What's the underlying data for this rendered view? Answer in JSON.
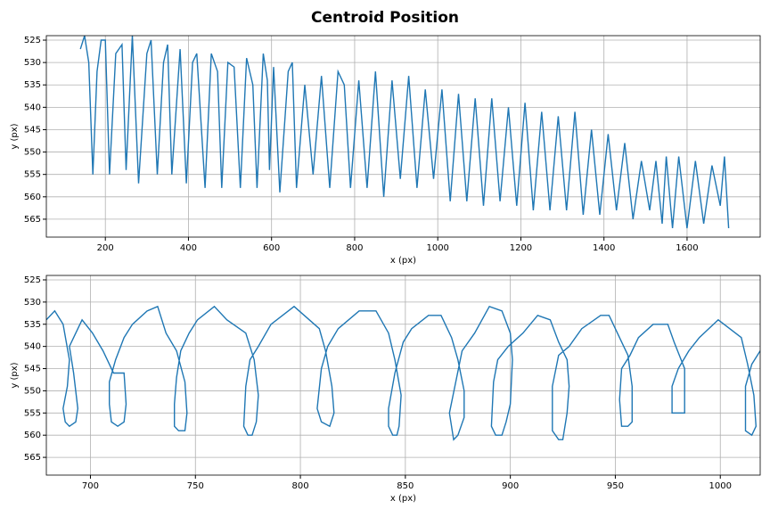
{
  "title": "Centroid Position",
  "chart_data": [
    {
      "type": "line",
      "xlabel": "x (px)",
      "ylabel": "y (px)",
      "color": "#1f77b4",
      "grid": true,
      "xlim": [
        58,
        1776
      ],
      "ylim": [
        569,
        524
      ],
      "xticks": [
        200,
        400,
        600,
        800,
        1000,
        1200,
        1400,
        1600
      ],
      "yticks": [
        525,
        530,
        535,
        540,
        545,
        550,
        555,
        560,
        565
      ],
      "x": [
        140,
        150,
        160,
        170,
        180,
        190,
        200,
        210,
        225,
        240,
        250,
        265,
        280,
        300,
        310,
        325,
        340,
        350,
        360,
        380,
        395,
        410,
        420,
        440,
        455,
        470,
        480,
        495,
        510,
        525,
        540,
        555,
        565,
        580,
        590,
        595,
        605,
        620,
        640,
        650,
        660,
        680,
        700,
        720,
        740,
        760,
        775,
        790,
        810,
        830,
        850,
        870,
        890,
        910,
        930,
        950,
        970,
        990,
        1010,
        1030,
        1050,
        1070,
        1090,
        1110,
        1130,
        1150,
        1170,
        1190,
        1210,
        1230,
        1250,
        1270,
        1290,
        1310,
        1330,
        1350,
        1370,
        1390,
        1410,
        1430,
        1450,
        1470,
        1490,
        1510,
        1525,
        1540,
        1550,
        1565,
        1580,
        1600,
        1620,
        1640,
        1660,
        1680,
        1690,
        1700
      ],
      "values": [
        527,
        524,
        530,
        555,
        532,
        525,
        525,
        555,
        528,
        526,
        554,
        524,
        557,
        528,
        525,
        555,
        530,
        526,
        555,
        527,
        557,
        530,
        528,
        558,
        528,
        532,
        558,
        530,
        531,
        558,
        529,
        535,
        558,
        528,
        534,
        554,
        531,
        559,
        532,
        530,
        558,
        535,
        555,
        533,
        558,
        532,
        535,
        558,
        534,
        558,
        532,
        560,
        534,
        556,
        533,
        558,
        536,
        556,
        536,
        561,
        537,
        561,
        538,
        562,
        538,
        561,
        540,
        562,
        539,
        563,
        541,
        563,
        542,
        563,
        541,
        564,
        545,
        564,
        546,
        563,
        548,
        565,
        552,
        563,
        552,
        566,
        551,
        567,
        551,
        567,
        552,
        566,
        553,
        562,
        551,
        567
      ]
    },
    {
      "type": "line",
      "xlabel": "x (px)",
      "ylabel": "y (px)",
      "color": "#1f77b4",
      "grid": true,
      "xlim": [
        679,
        1019
      ],
      "ylim": [
        569,
        524
      ],
      "xticks": [
        700,
        750,
        800,
        850,
        900,
        950,
        1000
      ],
      "yticks": [
        525,
        530,
        535,
        540,
        545,
        550,
        555,
        560,
        565
      ],
      "x": [
        679,
        683,
        687,
        690,
        689,
        687,
        688,
        690,
        693,
        694,
        692,
        690,
        693,
        696,
        701,
        706,
        711,
        716,
        717,
        716,
        713,
        710,
        709,
        709,
        712,
        716,
        720,
        727,
        732,
        736,
        741,
        745,
        746,
        745,
        742,
        740,
        740,
        741,
        743,
        747,
        751,
        759,
        765,
        774,
        778,
        780,
        779,
        777,
        775,
        773,
        774,
        776,
        780,
        786,
        797,
        809,
        812,
        815,
        816,
        814,
        810,
        808,
        810,
        813,
        818,
        828,
        836,
        842,
        845,
        848,
        847,
        846,
        844,
        842,
        842,
        845,
        849,
        853,
        861,
        867,
        872,
        875,
        878,
        878,
        875,
        873,
        871,
        874,
        877,
        883,
        890,
        896,
        900,
        901,
        900,
        898,
        896,
        893,
        891,
        892,
        894,
        899,
        906,
        913,
        919,
        923,
        927,
        928,
        927,
        925,
        923,
        920,
        920,
        923,
        928,
        934,
        943,
        947,
        951,
        956,
        958,
        958,
        956,
        953,
        952,
        953,
        957,
        961,
        968,
        975,
        978,
        983,
        983,
        977,
        977,
        980,
        985,
        990,
        999,
        1010,
        1013,
        1016,
        1017,
        1015,
        1012,
        1012,
        1015,
        1019
      ],
      "values": [
        534,
        532,
        535,
        543,
        549,
        554,
        557,
        558,
        557,
        554,
        546,
        540,
        537,
        534,
        537,
        541,
        546,
        546,
        553,
        557,
        558,
        557,
        553,
        548,
        543,
        538,
        535,
        532,
        531,
        537,
        541,
        548,
        555,
        559,
        559,
        558,
        553,
        547,
        541,
        537,
        534,
        531,
        534,
        537,
        543,
        551,
        557,
        560,
        560,
        558,
        549,
        543,
        540,
        535,
        531,
        536,
        541,
        549,
        555,
        558,
        557,
        554,
        545,
        540,
        536,
        532,
        532,
        537,
        543,
        551,
        558,
        560,
        560,
        558,
        554,
        546,
        539,
        536,
        533,
        533,
        538,
        543,
        550,
        556,
        560,
        561,
        555,
        548,
        541,
        537,
        531,
        532,
        537,
        543,
        553,
        557,
        560,
        560,
        558,
        548,
        543,
        540,
        537,
        533,
        534,
        539,
        543,
        549,
        555,
        561,
        561,
        559,
        549,
        542,
        540,
        536,
        533,
        533,
        537,
        542,
        549,
        557,
        558,
        558,
        552,
        545,
        542,
        538,
        535,
        535,
        539,
        545,
        555,
        555,
        549,
        545,
        541,
        538,
        534,
        538,
        544,
        551,
        558,
        560,
        559,
        549,
        544,
        541
      ]
    }
  ]
}
